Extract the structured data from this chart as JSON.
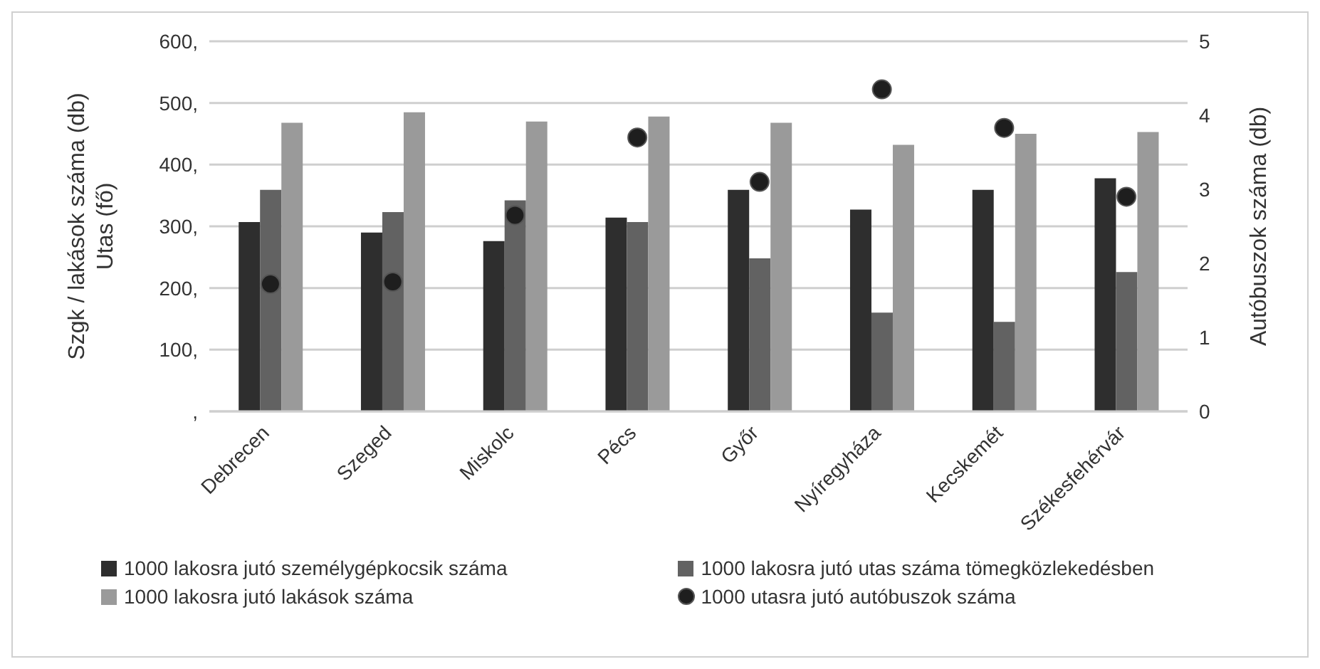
{
  "chart_data": {
    "type": "bar",
    "ylabel": "Szgk / lakások száma (db)\nUtas (fő)",
    "y2label": "Autóbuszok száma (db)",
    "categories": [
      "Debrecen",
      "Szeged",
      "Miskolc",
      "Pécs",
      "Győr",
      "Nyíregyháza",
      "Kecskemét",
      "Székesfehérvár"
    ],
    "series": [
      {
        "name": "1000 lakosra jutó személygépkocsik száma",
        "color": "#2e2e2e",
        "values": [
          307,
          290,
          276,
          314,
          359,
          327,
          359,
          378
        ]
      },
      {
        "name": "1000 lakosra jutó utas száma tömegközlekedésben",
        "color": "#626262",
        "values": [
          359,
          323,
          342,
          307,
          248,
          160,
          145,
          226
        ]
      },
      {
        "name": "1000 lakosra jutó lakások száma",
        "color": "#9a9a9a",
        "values": [
          468,
          485,
          470,
          478,
          468,
          432,
          450,
          453
        ]
      },
      {
        "name": "1000 utasra jutó autóbuszok száma",
        "type": "scatter",
        "axis": "y2",
        "color": "#1e1e1e",
        "values": [
          1.72,
          1.75,
          2.65,
          3.7,
          3.1,
          4.35,
          3.83,
          2.9
        ]
      }
    ],
    "ylim": [
      0,
      600
    ],
    "yticks": [
      {
        "value": 0,
        "label": ","
      },
      {
        "value": 100,
        "label": "100,"
      },
      {
        "value": 200,
        "label": "200,"
      },
      {
        "value": 300,
        "label": "300,"
      },
      {
        "value": 400,
        "label": "400,"
      },
      {
        "value": 500,
        "label": "500,"
      },
      {
        "value": 600,
        "label": "600,"
      }
    ],
    "y2lim": [
      0,
      5
    ],
    "y2ticks": [
      0,
      1,
      2,
      3,
      4,
      5
    ],
    "grid": "y",
    "legend": "bottom",
    "marker": "circle"
  }
}
